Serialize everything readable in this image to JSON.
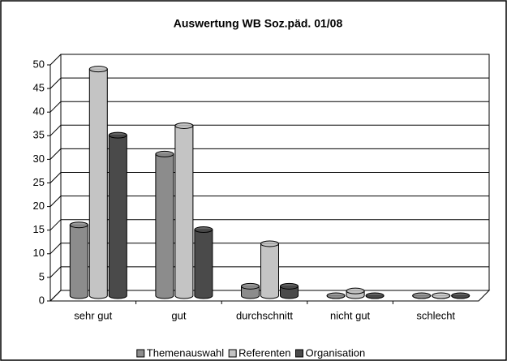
{
  "chart_data": {
    "type": "bar3d",
    "title": "Auswertung WB Soz.päd. 01/08",
    "categories": [
      "sehr gut",
      "gut",
      "durchschnitt",
      "nicht gut",
      "schlecht"
    ],
    "series": [
      {
        "name": "Themenauswahl",
        "color": "#8c8c8c",
        "values": [
          15,
          30,
          2,
          0,
          0
        ]
      },
      {
        "name": "Referenten",
        "color": "#c4c4c4",
        "values": [
          48,
          36,
          11,
          1,
          0
        ]
      },
      {
        "name": "Organisation",
        "color": "#4a4a4a",
        "values": [
          34,
          14,
          2,
          0,
          0
        ]
      }
    ],
    "ylim": [
      0,
      50
    ],
    "yticks": [
      0,
      5,
      10,
      15,
      20,
      25,
      30,
      35,
      40,
      45,
      50
    ],
    "grid": true,
    "legend": "bottom"
  }
}
